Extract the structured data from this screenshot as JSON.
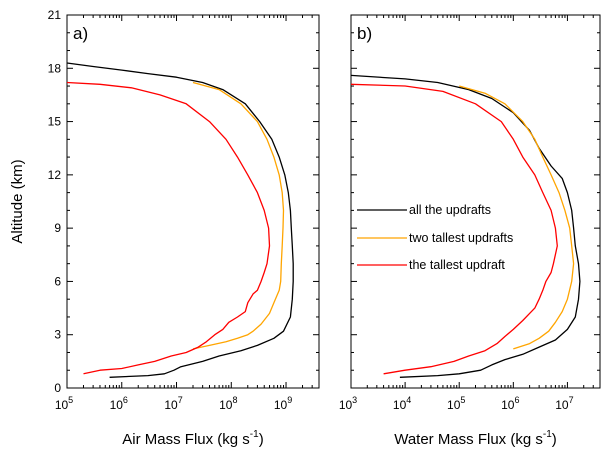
{
  "chart_data": [
    {
      "type": "line",
      "panel_label": "a)",
      "xlabel": "Air Mass Flux (kg s",
      "xlabel_sup": "-1",
      "xlabel_close": ")",
      "ylabel": "Altitude (km)",
      "xscale": "log",
      "xlim": [
        100000,
        4000000000
      ],
      "ylim": [
        0,
        21
      ],
      "xticks": [
        {
          "base": "10",
          "exp": "5",
          "value": 100000
        },
        {
          "base": "10",
          "exp": "6",
          "value": 1000000
        },
        {
          "base": "10",
          "exp": "7",
          "value": 10000000
        },
        {
          "base": "10",
          "exp": "8",
          "value": 100000000
        },
        {
          "base": "10",
          "exp": "9",
          "value": 1000000000
        }
      ],
      "yticks": [
        "0",
        "3",
        "6",
        "9",
        "12",
        "15",
        "18",
        "21"
      ],
      "series": [
        {
          "name": "all the updrafts",
          "color": "#000000",
          "points": [
            [
              600000,
              0.6
            ],
            [
              3000000,
              0.7
            ],
            [
              6000000,
              0.8
            ],
            [
              9000000,
              1.0
            ],
            [
              12000000,
              1.2
            ],
            [
              30000000,
              1.5
            ],
            [
              60000000,
              1.8
            ],
            [
              150000000,
              2.1
            ],
            [
              300000000,
              2.4
            ],
            [
              600000000,
              2.8
            ],
            [
              900000000,
              3.2
            ],
            [
              1200000000,
              4.0
            ],
            [
              1300000000,
              5.0
            ],
            [
              1350000000,
              6.0
            ],
            [
              1350000000,
              7.0
            ],
            [
              1300000000,
              8.0
            ],
            [
              1250000000,
              9.0
            ],
            [
              1200000000,
              10.0
            ],
            [
              1100000000,
              11.0
            ],
            [
              950000000,
              12.0
            ],
            [
              750000000,
              13.0
            ],
            [
              550000000,
              14.0
            ],
            [
              330000000,
              15.0
            ],
            [
              180000000,
              16.0
            ],
            [
              70000000,
              16.8
            ],
            [
              30000000,
              17.2
            ],
            [
              10000000,
              17.5
            ],
            [
              3000000,
              17.7
            ],
            [
              1000000,
              17.9
            ],
            [
              300000,
              18.1
            ],
            [
              100000,
              18.3
            ]
          ]
        },
        {
          "name": "two tallest updrafts",
          "color": "#FFA500",
          "points": [
            [
              20000000,
              2.2
            ],
            [
              40000000,
              2.4
            ],
            [
              80000000,
              2.6
            ],
            [
              130000000,
              2.8
            ],
            [
              200000000,
              3.0
            ],
            [
              250000000,
              3.2
            ],
            [
              350000000,
              3.6
            ],
            [
              500000000,
              4.2
            ],
            [
              600000000,
              4.8
            ],
            [
              750000000,
              5.5
            ],
            [
              800000000,
              6.0
            ],
            [
              820000000,
              7.0
            ],
            [
              850000000,
              8.0
            ],
            [
              880000000,
              9.0
            ],
            [
              900000000,
              10.0
            ],
            [
              850000000,
              11.0
            ],
            [
              750000000,
              12.0
            ],
            [
              600000000,
              13.0
            ],
            [
              450000000,
              14.0
            ],
            [
              300000000,
              15.0
            ],
            [
              150000000,
              16.0
            ],
            [
              60000000,
              16.8
            ],
            [
              20000000,
              17.2
            ]
          ]
        },
        {
          "name": "the tallest updraft",
          "color": "#FF0000",
          "points": [
            [
              200000,
              0.8
            ],
            [
              400000,
              1.0
            ],
            [
              1000000,
              1.1
            ],
            [
              2000000,
              1.3
            ],
            [
              4000000,
              1.5
            ],
            [
              8000000,
              1.8
            ],
            [
              15000000,
              2.0
            ],
            [
              25000000,
              2.3
            ],
            [
              35000000,
              2.6
            ],
            [
              50000000,
              3.0
            ],
            [
              70000000,
              3.3
            ],
            [
              90000000,
              3.7
            ],
            [
              130000000,
              4.0
            ],
            [
              180000000,
              4.3
            ],
            [
              200000000,
              4.8
            ],
            [
              250000000,
              5.3
            ],
            [
              300000000,
              5.5
            ],
            [
              350000000,
              6.0
            ],
            [
              400000000,
              6.5
            ],
            [
              450000000,
              7.0
            ],
            [
              500000000,
              8.0
            ],
            [
              480000000,
              9.0
            ],
            [
              400000000,
              10.0
            ],
            [
              300000000,
              11.0
            ],
            [
              200000000,
              12.0
            ],
            [
              130000000,
              13.0
            ],
            [
              80000000,
              14.0
            ],
            [
              40000000,
              15.0
            ],
            [
              15000000,
              16.0
            ],
            [
              5000000,
              16.5
            ],
            [
              1500000,
              16.9
            ],
            [
              400000,
              17.1
            ],
            [
              100000,
              17.2
            ]
          ]
        }
      ]
    },
    {
      "type": "line",
      "panel_label": "b)",
      "xlabel": "Water Mass Flux (kg s",
      "xlabel_sup": "-1",
      "xlabel_close": ")",
      "ylabel": "",
      "xscale": "log",
      "xlim": [
        1000,
        40000000
      ],
      "ylim": [
        0,
        21
      ],
      "xticks": [
        {
          "base": "10",
          "exp": "3",
          "value": 1000
        },
        {
          "base": "10",
          "exp": "4",
          "value": 10000
        },
        {
          "base": "10",
          "exp": "5",
          "value": 100000
        },
        {
          "base": "10",
          "exp": "6",
          "value": 1000000
        },
        {
          "base": "10",
          "exp": "7",
          "value": 10000000
        }
      ],
      "yticks": [],
      "series": [
        {
          "name": "all the updrafts",
          "color": "#000000",
          "points": [
            [
              8000,
              0.6
            ],
            [
              40000,
              0.7
            ],
            [
              100000,
              0.8
            ],
            [
              250000,
              1.0
            ],
            [
              400000,
              1.3
            ],
            [
              700000,
              1.6
            ],
            [
              1500000,
              1.9
            ],
            [
              3000000,
              2.3
            ],
            [
              6000000,
              2.7
            ],
            [
              10000000,
              3.3
            ],
            [
              14000000,
              4.0
            ],
            [
              16000000,
              5.0
            ],
            [
              17000000,
              6.0
            ],
            [
              16000000,
              7.0
            ],
            [
              14000000,
              8.0
            ],
            [
              13000000,
              9.0
            ],
            [
              12000000,
              10.0
            ],
            [
              10000000,
              11.0
            ],
            [
              8000000,
              11.8
            ],
            [
              5000000,
              12.5
            ],
            [
              3000000,
              13.5
            ],
            [
              2000000,
              14.5
            ],
            [
              1000000,
              15.5
            ],
            [
              400000,
              16.3
            ],
            [
              150000,
              16.8
            ],
            [
              40000,
              17.2
            ],
            [
              10000,
              17.4
            ],
            [
              1000,
              17.6
            ]
          ]
        },
        {
          "name": "two tallest updrafts",
          "color": "#FFA500",
          "points": [
            [
              1000000,
              2.2
            ],
            [
              2000000,
              2.5
            ],
            [
              3000000,
              2.8
            ],
            [
              4500000,
              3.2
            ],
            [
              6000000,
              3.7
            ],
            [
              8000000,
              4.3
            ],
            [
              10000000,
              5.0
            ],
            [
              12000000,
              6.0
            ],
            [
              13000000,
              7.0
            ],
            [
              12000000,
              8.0
            ],
            [
              11000000,
              9.0
            ],
            [
              9000000,
              10.0
            ],
            [
              7000000,
              11.0
            ],
            [
              5000000,
              12.0
            ],
            [
              3500000,
              13.0
            ],
            [
              2500000,
              14.0
            ],
            [
              1500000,
              15.0
            ],
            [
              700000,
              16.0
            ],
            [
              300000,
              16.6
            ],
            [
              100000,
              17.0
            ]
          ]
        },
        {
          "name": "the tallest updraft",
          "color": "#FF0000",
          "points": [
            [
              4000,
              0.8
            ],
            [
              10000,
              1.0
            ],
            [
              30000,
              1.2
            ],
            [
              80000,
              1.5
            ],
            [
              150000,
              1.8
            ],
            [
              300000,
              2.1
            ],
            [
              500000,
              2.5
            ],
            [
              700000,
              2.9
            ],
            [
              1000000,
              3.3
            ],
            [
              1500000,
              3.8
            ],
            [
              2000000,
              4.2
            ],
            [
              2500000,
              4.5
            ],
            [
              3000000,
              5.0
            ],
            [
              3500000,
              5.5
            ],
            [
              4000000,
              6.0
            ],
            [
              5000000,
              6.5
            ],
            [
              5500000,
              7.0
            ],
            [
              6500000,
              8.0
            ],
            [
              6000000,
              9.0
            ],
            [
              5000000,
              10.0
            ],
            [
              3500000,
              11.0
            ],
            [
              2500000,
              12.0
            ],
            [
              1500000,
              13.0
            ],
            [
              1000000,
              14.0
            ],
            [
              600000,
              15.0
            ],
            [
              200000,
              16.0
            ],
            [
              50000,
              16.7
            ],
            [
              10000,
              17.0
            ],
            [
              1000,
              17.1
            ]
          ]
        }
      ]
    }
  ],
  "legend": {
    "placement": "right-middle of panel b",
    "entries": [
      {
        "label": "all the updrafts",
        "color": "#000000"
      },
      {
        "label": "two tallest updrafts",
        "color": "#FFA500"
      },
      {
        "label": "the tallest updraft",
        "color": "#FF0000"
      }
    ]
  }
}
